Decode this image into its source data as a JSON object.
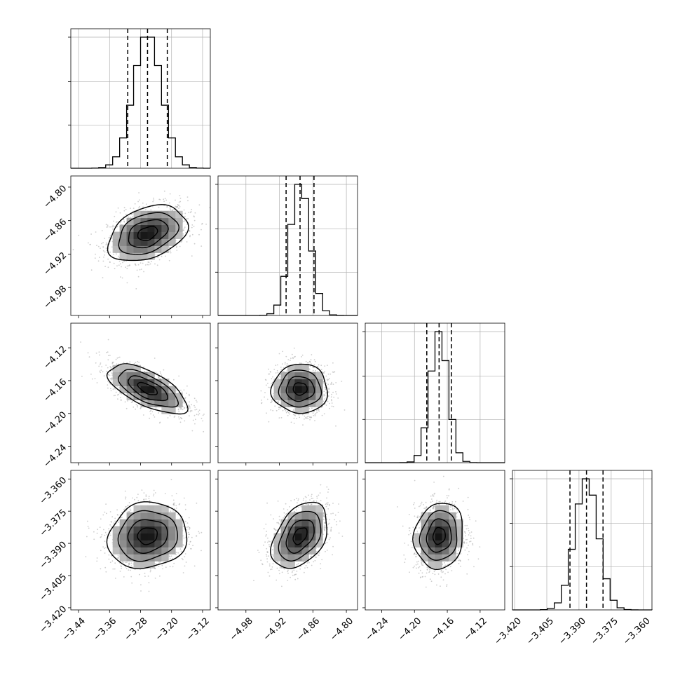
{
  "chart_data": {
    "type": "corner",
    "title": "",
    "grid": true,
    "colors": {
      "line": "#000000",
      "quantile": "#000000",
      "grid": "#b0b0b0",
      "points": "#a6a6a6"
    },
    "quantiles": [
      0.16,
      0.5,
      0.84
    ],
    "parameters": [
      {
        "index": 0,
        "range": [
          -3.46,
          -3.1
        ],
        "ticks": [
          -3.44,
          -3.36,
          -3.28,
          -3.2,
          -3.12
        ],
        "tick_labels": [
          "−3.44",
          "−3.36",
          "−3.28",
          "−3.20",
          "−3.12"
        ],
        "mean": -3.262,
        "sd": 0.051,
        "quantile_values": [
          -3.313,
          -3.262,
          -3.211
        ]
      },
      {
        "index": 1,
        "range": [
          -5.03,
          -4.78
        ],
        "ticks": [
          -4.98,
          -4.92,
          -4.86,
          -4.8
        ],
        "tick_labels": [
          "−4.98",
          "−4.92",
          "−4.86",
          "−4.80"
        ],
        "mean": -4.883,
        "sd": 0.025,
        "quantile_values": [
          -4.908,
          -4.883,
          -4.858
        ]
      },
      {
        "index": 2,
        "range": [
          -4.26,
          -4.09
        ],
        "ticks": [
          -4.24,
          -4.2,
          -4.16,
          -4.12
        ],
        "tick_labels": [
          "−4.24",
          "−4.20",
          "−4.16",
          "−4.12"
        ],
        "mean": -4.17,
        "sd": 0.015,
        "quantile_values": [
          -4.185,
          -4.17,
          -4.155
        ]
      },
      {
        "index": 3,
        "range": [
          -3.421,
          -3.356
        ],
        "ticks": [
          -3.42,
          -3.405,
          -3.39,
          -3.375,
          -3.36
        ],
        "tick_labels": [
          "−3.420",
          "−3.405",
          "−3.390",
          "−3.375",
          "−3.360"
        ],
        "mean": -3.3865,
        "sd": 0.0077,
        "quantile_values": [
          -3.3942,
          -3.3865,
          -3.3788
        ]
      }
    ],
    "correlations": {
      "1-0": 0.35,
      "2-0": -0.65,
      "2-1": 0.0,
      "3-0": 0.1,
      "3-1": 0.4,
      "3-2": 0.1
    }
  }
}
